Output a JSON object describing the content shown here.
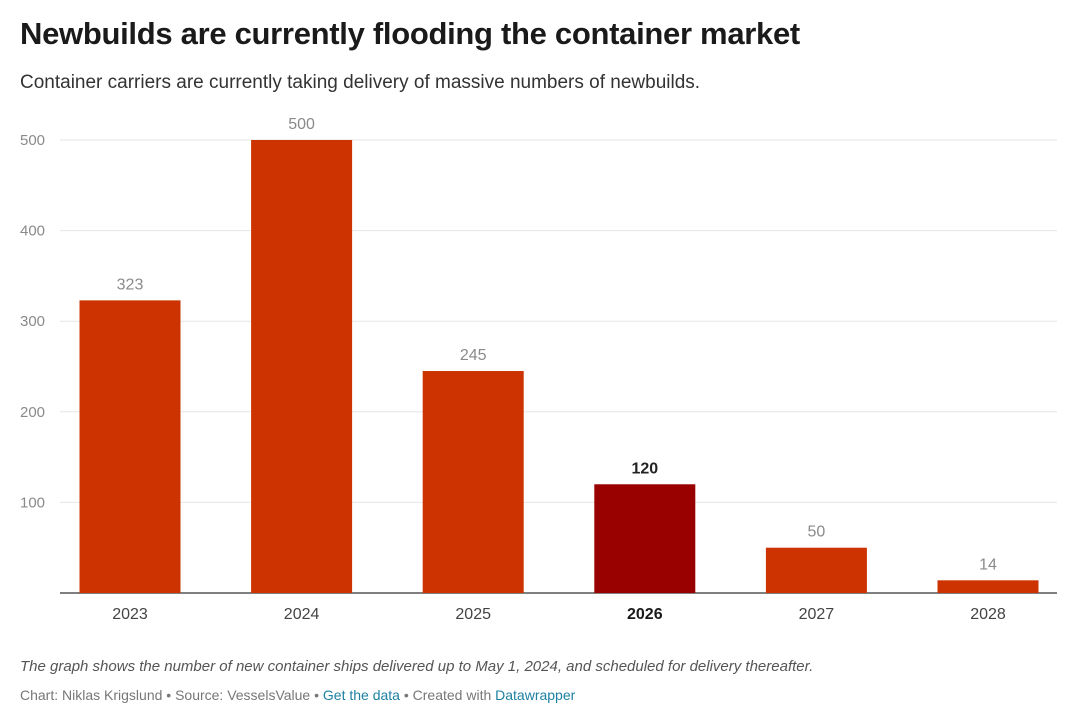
{
  "header": {
    "title": "Newbuilds are currently flooding the container market",
    "subtitle": "Container carriers are currently taking delivery of massive numbers of newbuilds."
  },
  "chart_data": {
    "type": "bar",
    "categories": [
      "2023",
      "2024",
      "2025",
      "2026",
      "2027",
      "2028"
    ],
    "values": [
      323,
      500,
      245,
      120,
      50,
      14
    ],
    "value_labels": [
      "323",
      "500",
      "245",
      "120",
      "50",
      "14"
    ],
    "highlighted_category": "2026",
    "yticks": [
      100,
      200,
      300,
      400,
      500
    ],
    "ylim": [
      0,
      500
    ],
    "grid": true,
    "colors": {
      "bar": "#cc3300",
      "bar_highlight": "#990000",
      "value_label": "#8a8a8a",
      "value_label_highlight": "#222222",
      "tick_label": "#8a8a8a",
      "category_label": "#444444",
      "grid": "#e6e6e6",
      "baseline": "#555555"
    }
  },
  "footer": {
    "note": "The graph shows the number of new container ships delivered up to May 1, 2024, and scheduled for delivery thereafter.",
    "credit": "Chart: Niklas Krigslund • Source: VesselsValue • ",
    "get_data_link": "Get the data",
    "separator": " • Created with ",
    "datawrapper_link": "Datawrapper"
  }
}
